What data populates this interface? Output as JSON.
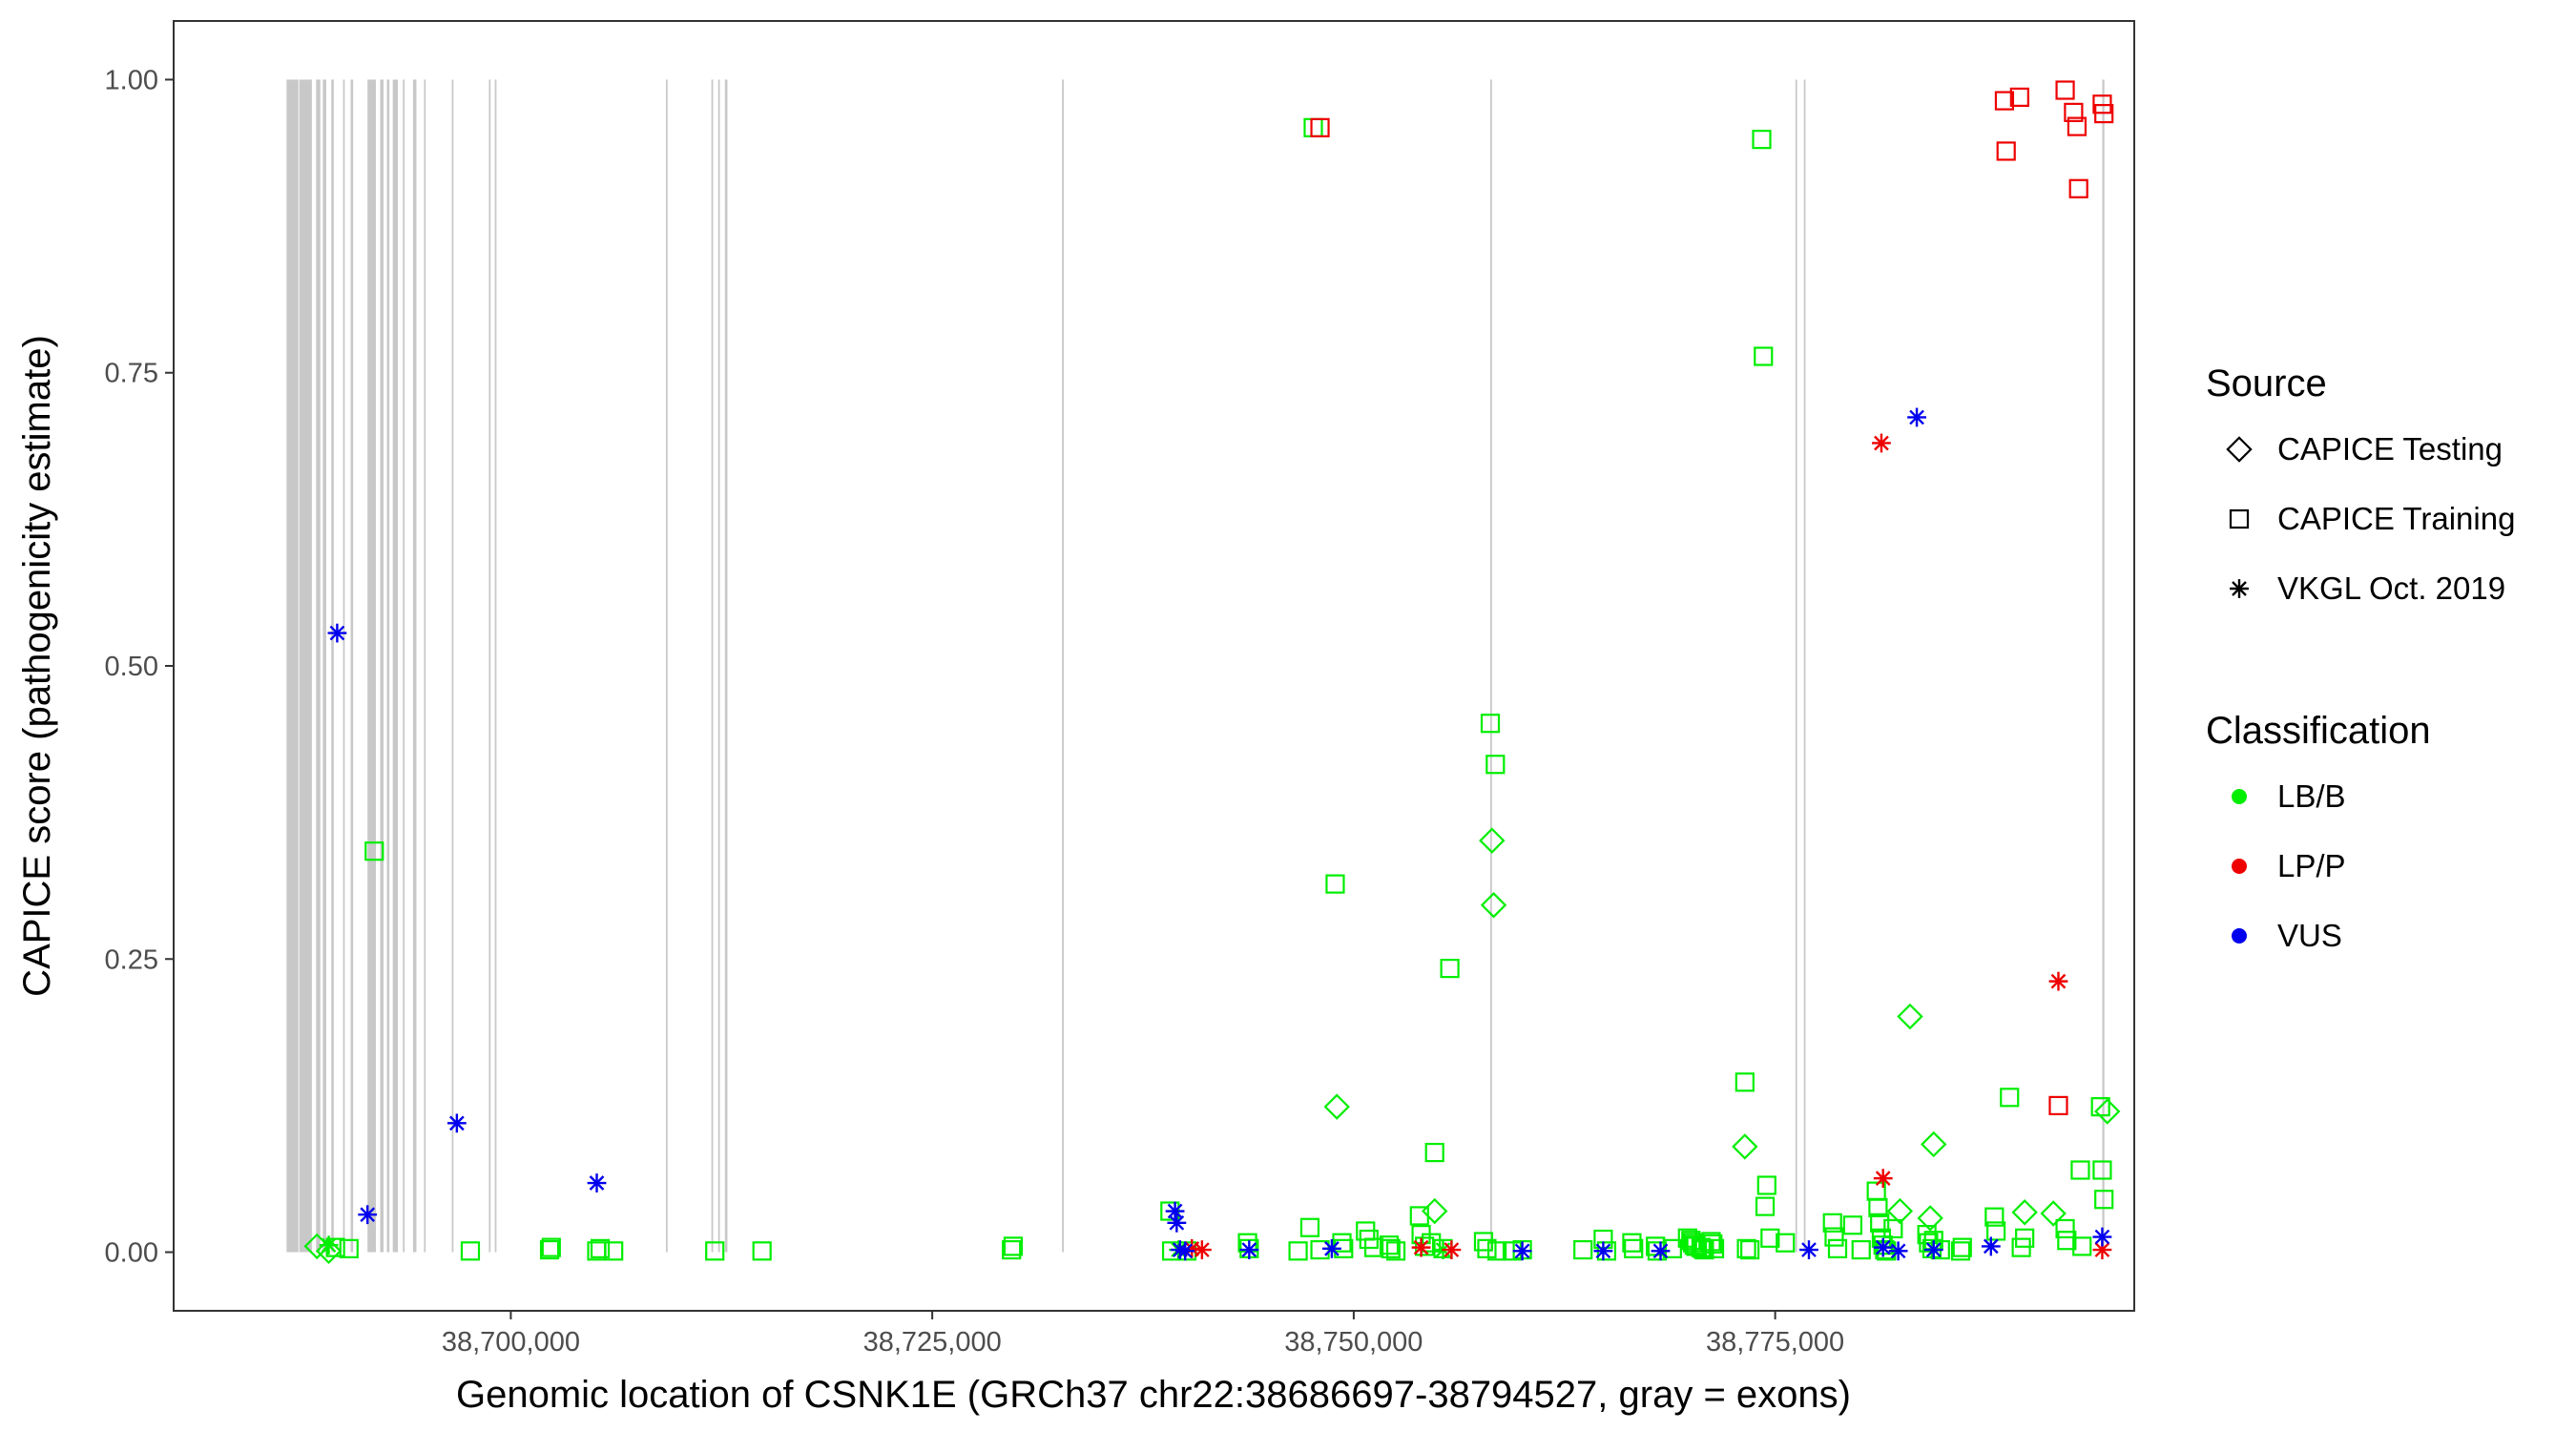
{
  "chart_data": {
    "type": "scatter",
    "xlabel": "Genomic location of CSNK1E (GRCh37 chr22:38686697-38794527, gray = exons)",
    "ylabel": "CAPICE score (pathogenicity estimate)",
    "xlim": [
      38680000,
      38796300
    ],
    "ylim": [
      -0.05,
      1.05
    ],
    "x_ticks": [
      38700000,
      38725000,
      38750000,
      38775000
    ],
    "x_tick_labels": [
      "38,700,000",
      "38,725,000",
      "38,750,000",
      "38,775,000"
    ],
    "y_ticks": [
      0,
      0.25,
      0.5,
      0.75,
      1.0
    ],
    "y_tick_labels": [
      "0.00",
      "0.25",
      "0.50",
      "0.75",
      "1.00"
    ],
    "exons": [
      [
        38686697,
        38687400
      ],
      [
        38687450,
        38688200
      ],
      [
        38688450,
        38688700
      ],
      [
        38688850,
        38689050
      ],
      [
        38689350,
        38689500
      ],
      [
        38690050,
        38690150
      ],
      [
        38690500,
        38690650
      ],
      [
        38691500,
        38692000
      ],
      [
        38692250,
        38692450
      ],
      [
        38692650,
        38692800
      ],
      [
        38693000,
        38693300
      ],
      [
        38693600,
        38693700
      ],
      [
        38694200,
        38694400
      ],
      [
        38694850,
        38694950
      ],
      [
        38696500,
        38696600
      ],
      [
        38698700,
        38698800
      ],
      [
        38699050,
        38699150
      ],
      [
        38709200,
        38709300
      ],
      [
        38711900,
        38712000
      ],
      [
        38712300,
        38712400
      ],
      [
        38712700,
        38712850
      ],
      [
        38732700,
        38732800
      ],
      [
        38758100,
        38758200
      ],
      [
        38776200,
        38776300
      ],
      [
        38776700,
        38776800
      ],
      [
        38794400,
        38794527
      ]
    ],
    "legend": {
      "source_title": "Source",
      "source_items": [
        {
          "label": "CAPICE Testing",
          "shape": "diamond"
        },
        {
          "label": "CAPICE Training",
          "shape": "square"
        },
        {
          "label": "VKGL Oct. 2019",
          "shape": "asterisk"
        }
      ],
      "class_title": "Classification",
      "class_items": [
        {
          "label": "LB/B",
          "color": "#00ee00"
        },
        {
          "label": "LP/P",
          "color": "#ee0000"
        },
        {
          "label": "VUS",
          "color": "#0000ee"
        }
      ]
    },
    "series": [
      {
        "name": "CAPICE Training - LB/B",
        "source": "CAPICE Training",
        "classification": "LB/B",
        "x": [
          38689600,
          38690400,
          38691900,
          38697600,
          38702300,
          38702400,
          38705100,
          38705300,
          38706100,
          38712100,
          38714900,
          38729700,
          38729800,
          38739100,
          38739200,
          38740100,
          38743700,
          38743800,
          38746700,
          38747400,
          38747600,
          38748000,
          38748900,
          38749300,
          38749400,
          38750700,
          38750900,
          38751200,
          38752100,
          38752200,
          38752500,
          38753900,
          38754000,
          38754200,
          38754600,
          38754800,
          38755300,
          38755700,
          38757700,
          38757900,
          38758100,
          38758400,
          38758500,
          38759400,
          38760000,
          38763600,
          38764800,
          38765000,
          38766500,
          38766600,
          38767900,
          38768000,
          38768900,
          38769800,
          38770000,
          38770100,
          38770200,
          38770300,
          38770600,
          38770700,
          38770800,
          38771200,
          38771300,
          38771400,
          38773200,
          38773300,
          38773500,
          38774200,
          38774300,
          38774400,
          38774500,
          38774700,
          38775600,
          38778400,
          38778500,
          38778700,
          38779600,
          38780100,
          38781000,
          38781100,
          38781200,
          38781300,
          38781400,
          38781500,
          38781600,
          38782000,
          38784000,
          38784100,
          38784300,
          38784400,
          38784800,
          38786000,
          38786100,
          38788000,
          38788100,
          38788900,
          38789600,
          38789800,
          38792200,
          38792300,
          38793100,
          38793200,
          38794300,
          38794400,
          38794500
        ],
        "y": [
          0.004,
          0.003,
          0.342,
          0.001,
          0.002,
          0.004,
          0.001,
          0.003,
          0.001,
          0.001,
          0.001,
          0.002,
          0.005,
          0.035,
          0.001,
          0.001,
          0.008,
          0.003,
          0.001,
          0.021,
          0.959,
          0.002,
          0.314,
          0.008,
          0.003,
          0.018,
          0.011,
          0.004,
          0.006,
          0.003,
          0.001,
          0.031,
          0.015,
          0.005,
          0.008,
          0.085,
          0.003,
          0.242,
          0.009,
          0.003,
          0.451,
          0.416,
          0.001,
          0.001,
          0.002,
          0.002,
          0.011,
          0.001,
          0.008,
          0.003,
          0.005,
          0.001,
          0.003,
          0.012,
          0.01,
          0.008,
          0.006,
          0.005,
          0.004,
          0.003,
          0.002,
          0.009,
          0.007,
          0.003,
          0.145,
          0.003,
          0.002,
          0.949,
          0.764,
          0.039,
          0.057,
          0.012,
          0.008,
          0.025,
          0.013,
          0.003,
          0.023,
          0.002,
          0.052,
          0.038,
          0.025,
          0.012,
          0.006,
          0.002,
          0.001,
          0.02,
          0.015,
          0.008,
          0.003,
          0.01,
          0.002,
          0.001,
          0.004,
          0.03,
          0.018,
          0.132,
          0.004,
          0.012,
          0.02,
          0.01,
          0.07,
          0.005,
          0.124,
          0.07,
          0.045
        ]
      },
      {
        "name": "CAPICE Training - LP/P",
        "source": "CAPICE Training",
        "classification": "LP/P",
        "x": [
          38748000,
          38788600,
          38788700,
          38789500,
          38791800,
          38792200,
          38792700,
          38792900,
          38793000,
          38794400,
          38794500
        ],
        "y": [
          0.959,
          0.982,
          0.939,
          0.985,
          0.125,
          0.991,
          0.972,
          0.96,
          0.907,
          0.979,
          0.971
        ]
      },
      {
        "name": "CAPICE Testing - LB/B",
        "source": "CAPICE Testing",
        "classification": "LB/B",
        "x": [
          38688500,
          38689200,
          38749000,
          38754800,
          38758200,
          38758300,
          38773200,
          38782400,
          38783000,
          38784200,
          38784400,
          38789800,
          38791500,
          38794700
        ],
        "y": [
          0.005,
          0.001,
          0.124,
          0.035,
          0.351,
          0.296,
          0.09,
          0.035,
          0.201,
          0.029,
          0.092,
          0.034,
          0.033,
          0.12
        ]
      },
      {
        "name": "VKGL Oct. 2019 - LB/B",
        "source": "VKGL Oct. 2019",
        "classification": "LB/B",
        "x": [
          38689200,
          38739600,
          38755300
        ],
        "y": [
          0.006,
          0.002,
          0.002
        ]
      },
      {
        "name": "VKGL Oct. 2019 - LP/P",
        "source": "VKGL Oct. 2019",
        "classification": "LP/P",
        "x": [
          38740400,
          38741000,
          38754000,
          38755800,
          38781300,
          38781400,
          38791800,
          38794400
        ],
        "y": [
          0.003,
          0.002,
          0.004,
          0.002,
          0.69,
          0.063,
          0.231,
          0.002
        ]
      },
      {
        "name": "VKGL Oct. 2019 - VUS",
        "source": "VKGL Oct. 2019",
        "classification": "VUS",
        "x": [
          38689700,
          38691500,
          38696800,
          38705100,
          38739400,
          38739500,
          38739700,
          38740000,
          38743800,
          38748700,
          38760000,
          38764800,
          38768200,
          38777000,
          38781400,
          38782300,
          38783400,
          38784400,
          38787800,
          38794400
        ],
        "y": [
          0.528,
          0.032,
          0.11,
          0.059,
          0.035,
          0.025,
          0.002,
          0.001,
          0.002,
          0.003,
          0.001,
          0.001,
          0.001,
          0.002,
          0.004,
          0.001,
          0.712,
          0.002,
          0.005,
          0.013
        ]
      }
    ]
  }
}
